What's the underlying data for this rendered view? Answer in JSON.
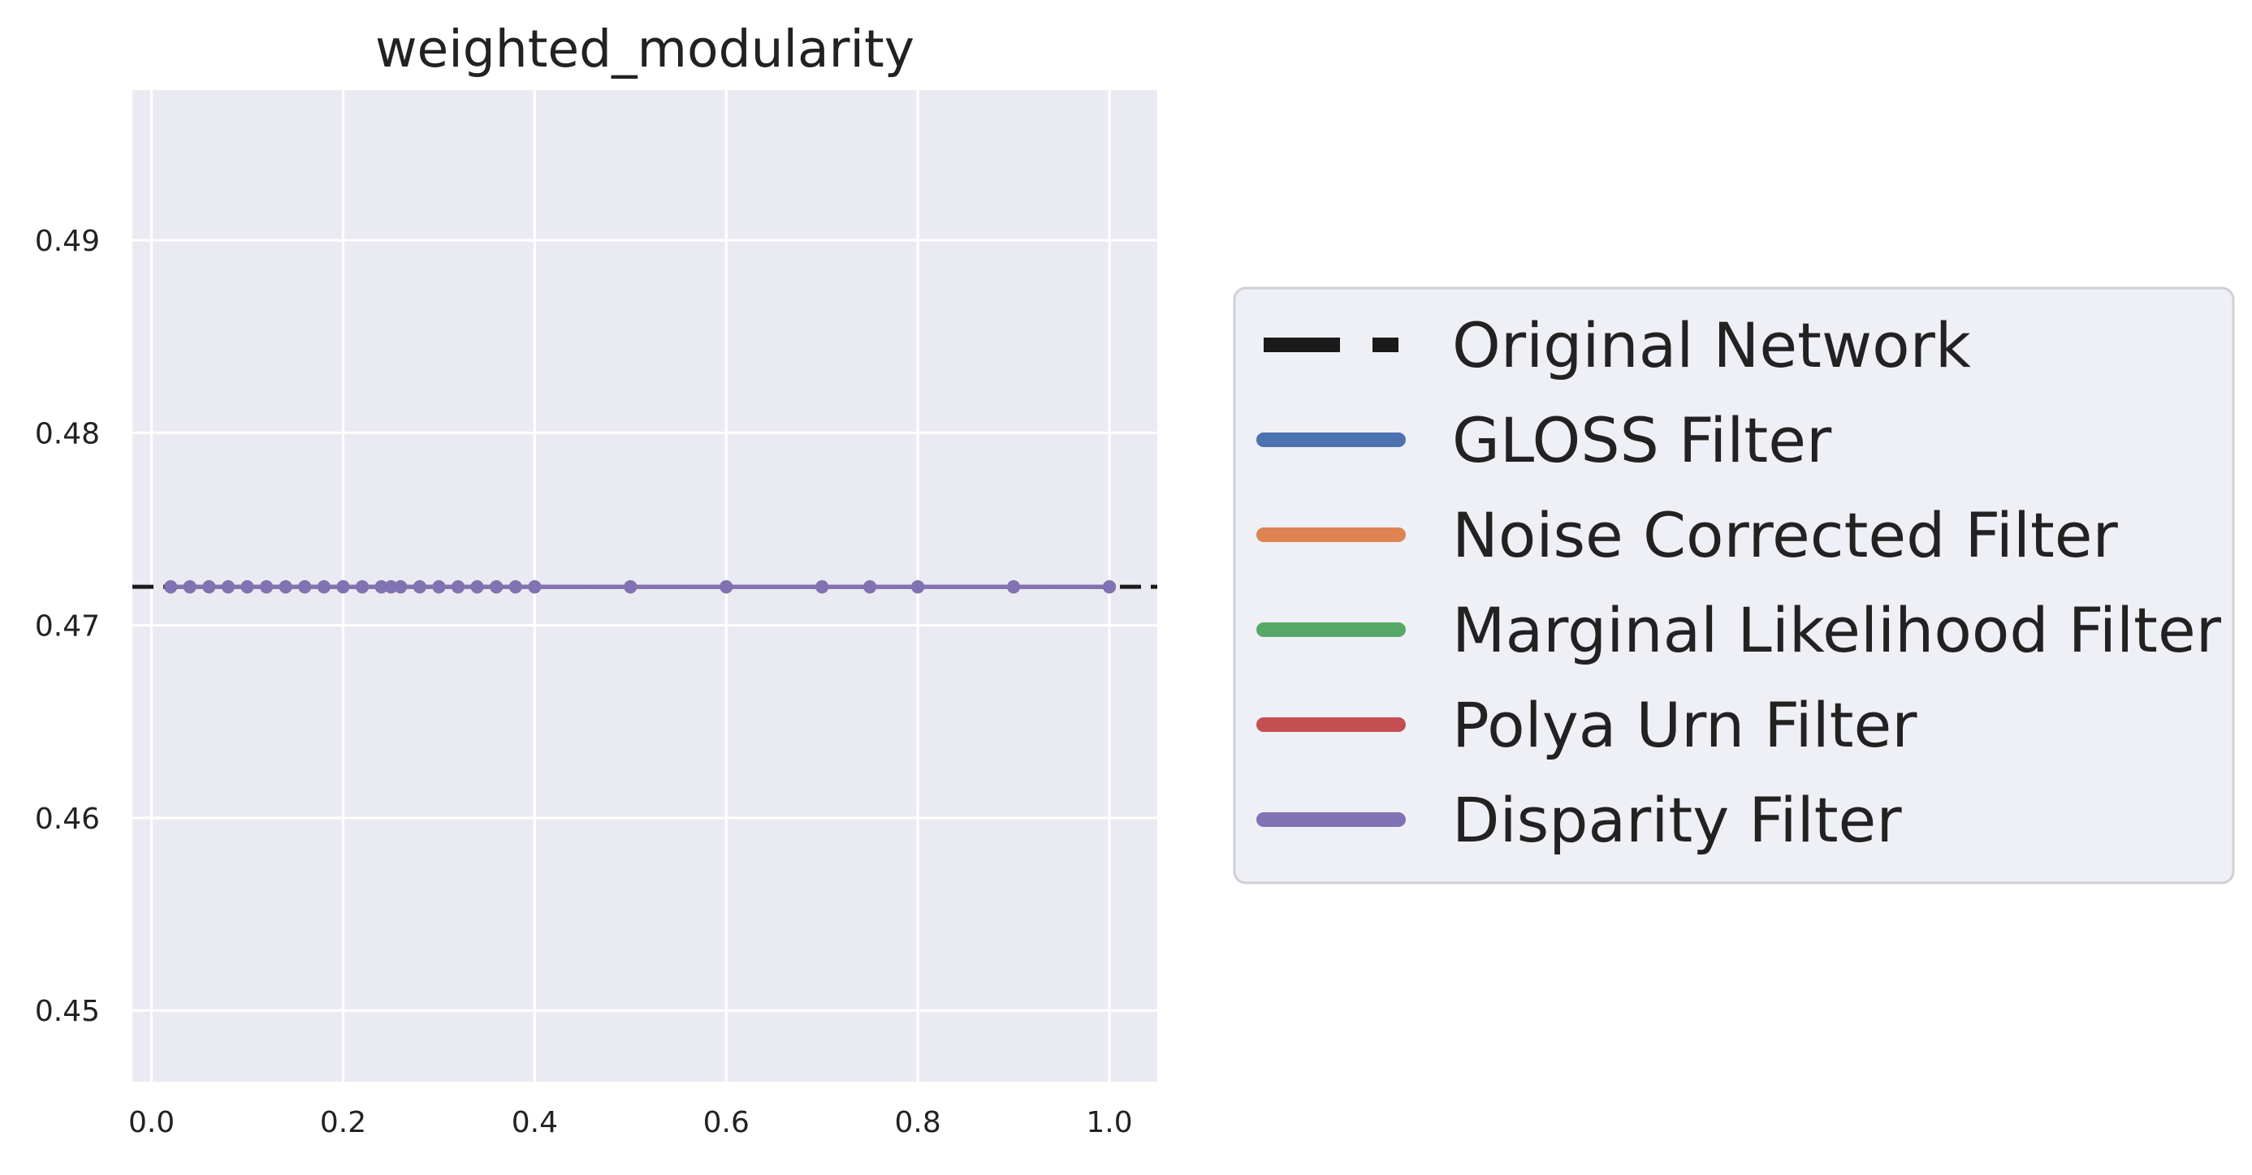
{
  "chart_data": {
    "type": "line",
    "title": "weighted_modularity",
    "xlabel": "",
    "ylabel": "",
    "xlim": [
      -0.02,
      1.05
    ],
    "ylim": [
      0.4463,
      0.4978
    ],
    "xticks": [
      0.0,
      0.2,
      0.4,
      0.6,
      0.8,
      1.0
    ],
    "xtick_labels": [
      "0.0",
      "0.2",
      "0.4",
      "0.6",
      "0.8",
      "1.0"
    ],
    "yticks": [
      0.45,
      0.46,
      0.47,
      0.48,
      0.49
    ],
    "ytick_labels": [
      "0.45",
      "0.46",
      "0.47",
      "0.48",
      "0.49"
    ],
    "grid": true,
    "background_color": "#eaeaf2",
    "reference_line": {
      "name": "Original Network",
      "value": 0.472,
      "style": "dashed",
      "color": "#1a1a1a"
    },
    "x": [
      0.02,
      0.04,
      0.06,
      0.08,
      0.1,
      0.12,
      0.14,
      0.16,
      0.18,
      0.2,
      0.22,
      0.24,
      0.25,
      0.26,
      0.28,
      0.3,
      0.32,
      0.34,
      0.36,
      0.38,
      0.4,
      0.5,
      0.6,
      0.7,
      0.75,
      0.8,
      0.9,
      1.0
    ],
    "series": [
      {
        "name": "GLOSS Filter",
        "color": "#4c72b0",
        "values": [
          0.472,
          0.472,
          0.472,
          0.472,
          0.472,
          0.472,
          0.472,
          0.472,
          0.472,
          0.472,
          0.472,
          0.472,
          0.472,
          0.472,
          0.472,
          0.472,
          0.472,
          0.472,
          0.472,
          0.472,
          0.472,
          0.472,
          0.472,
          0.472,
          0.472,
          0.472,
          0.472,
          0.472
        ]
      },
      {
        "name": "Noise Corrected Filter",
        "color": "#dd8452",
        "values": [
          0.472,
          0.472,
          0.472,
          0.472,
          0.472,
          0.472,
          0.472,
          0.472,
          0.472,
          0.472,
          0.472,
          0.472,
          0.472,
          0.472,
          0.472,
          0.472,
          0.472,
          0.472,
          0.472,
          0.472,
          0.472,
          0.472,
          0.472,
          0.472,
          0.472,
          0.472,
          0.472,
          0.472
        ]
      },
      {
        "name": "Marginal Likelihood Filter",
        "color": "#55a868",
        "values": [
          0.472,
          0.472,
          0.472,
          0.472,
          0.472,
          0.472,
          0.472,
          0.472,
          0.472,
          0.472,
          0.472,
          0.472,
          0.472,
          0.472,
          0.472,
          0.472,
          0.472,
          0.472,
          0.472,
          0.472,
          0.472,
          0.472,
          0.472,
          0.472,
          0.472,
          0.472,
          0.472,
          0.472
        ]
      },
      {
        "name": "Polya Urn Filter",
        "color": "#c44e52",
        "values": [
          0.472,
          0.472,
          0.472,
          0.472,
          0.472,
          0.472,
          0.472,
          0.472,
          0.472,
          0.472,
          0.472,
          0.472,
          0.472,
          0.472,
          0.472,
          0.472,
          0.472,
          0.472,
          0.472,
          0.472,
          0.472,
          0.472,
          0.472,
          0.472,
          0.472,
          0.472,
          0.472,
          0.472
        ]
      },
      {
        "name": "Disparity Filter",
        "color": "#8172b3",
        "values": [
          0.472,
          0.472,
          0.472,
          0.472,
          0.472,
          0.472,
          0.472,
          0.472,
          0.472,
          0.472,
          0.472,
          0.472,
          0.472,
          0.472,
          0.472,
          0.472,
          0.472,
          0.472,
          0.472,
          0.472,
          0.472,
          0.472,
          0.472,
          0.472,
          0.472,
          0.472,
          0.472,
          0.472
        ]
      }
    ],
    "legend": {
      "placement": "right-outside",
      "entries": [
        "Original Network",
        "GLOSS Filter",
        "Noise Corrected Filter",
        "Marginal Likelihood Filter",
        "Polya Urn Filter",
        "Disparity Filter"
      ]
    }
  }
}
